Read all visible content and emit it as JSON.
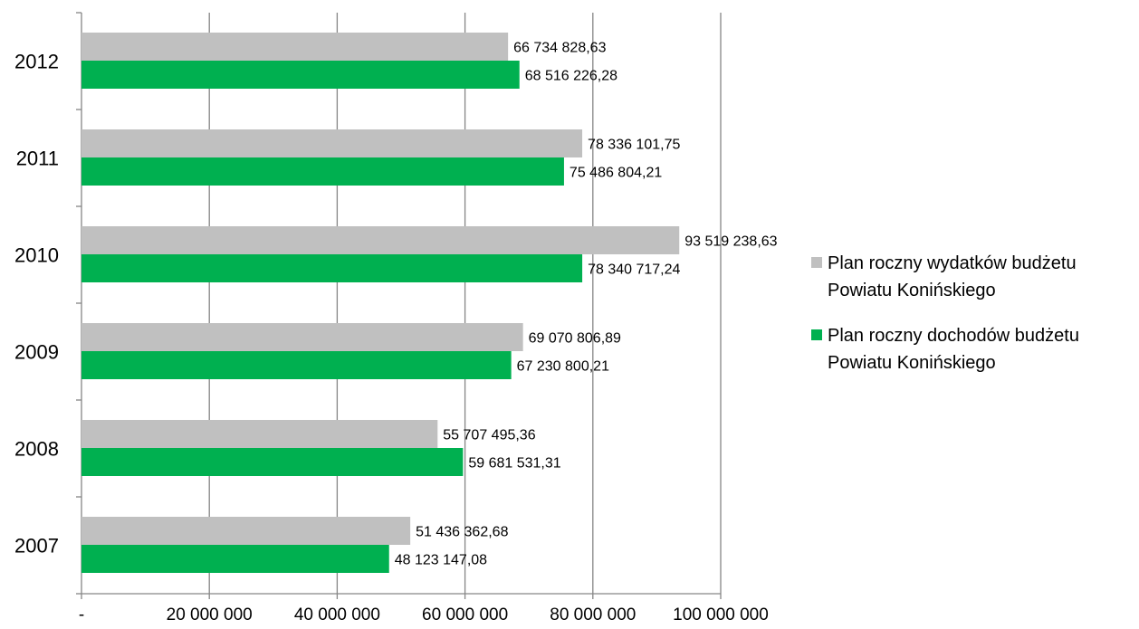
{
  "chart_data": {
    "type": "bar",
    "orientation": "horizontal",
    "categories": [
      "2007",
      "2008",
      "2009",
      "2010",
      "2011",
      "2012"
    ],
    "series": [
      {
        "name": "Plan roczny wydatków budżetu Powiatu Konińskiego",
        "color": "#C0C0C0",
        "values": [
          51436362.68,
          55707495.36,
          69070806.89,
          93519238.63,
          78336101.75,
          66734828.63
        ],
        "labels": [
          "51 436 362,68",
          "55 707 495,36",
          "69 070 806,89",
          "93 519 238,63",
          "78 336 101,75",
          "66 734 828,63"
        ]
      },
      {
        "name": "Plan roczny dochodów budżetu Powiatu Konińskiego",
        "color": "#00B050",
        "values": [
          48123147.08,
          59681531.31,
          67230800.21,
          78340717.24,
          75486804.21,
          68516226.28
        ],
        "labels": [
          "48 123 147,08",
          "59 681 531,31",
          "67 230 800,21",
          "78 340 717,24",
          "75 486 804,21",
          "68 516 226,28"
        ]
      }
    ],
    "xlim": [
      0,
      100000000
    ],
    "xticks": [
      0,
      20000000,
      40000000,
      60000000,
      80000000,
      100000000
    ],
    "xtick_labels": [
      "-",
      "20 000 000",
      "40 000 000",
      "60 000 000",
      "80 000 000",
      "100 000 000"
    ],
    "grid": true,
    "legend_position": "right",
    "title": "",
    "xlabel": "",
    "ylabel": ""
  }
}
